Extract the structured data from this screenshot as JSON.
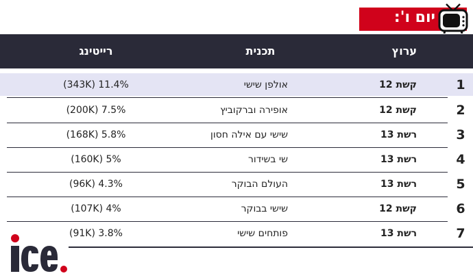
{
  "title": "יום ו':",
  "icons": {
    "tv": "tv-icon"
  },
  "columns": {
    "channel": "ערוץ",
    "program": "תכנית",
    "rating": "רייטינג"
  },
  "rows": [
    {
      "rank": "1",
      "channel": "קשת 12",
      "program": "אולפן שישי",
      "rating": "(343K) 11.4%"
    },
    {
      "rank": "2",
      "channel": "קשת 12",
      "program": "אופירה וברקוביץ",
      "rating": "(200K) 7.5%"
    },
    {
      "rank": "3",
      "channel": "רשת 13",
      "program": "שישי עם אילה חסון",
      "rating": "(168K) 5.8%"
    },
    {
      "rank": "4",
      "channel": "רשת 13",
      "program": "שי בשידור",
      "rating": "(160K) 5%"
    },
    {
      "rank": "5",
      "channel": "רשת 13",
      "program": "העולם הבוקר",
      "rating": "(96K) 4.3%"
    },
    {
      "rank": "6",
      "channel": "קשת 12",
      "program": "שישי בבוקר",
      "rating": "(107K) 4%"
    },
    {
      "rank": "7",
      "channel": "רשת 13",
      "program": "פותחים שישי",
      "rating": "(91K) 3.8%"
    }
  ],
  "logo": "ice.",
  "colors": {
    "accent": "#d0021b",
    "header": "#2a2a38",
    "highlight": "#e4e4f4"
  }
}
